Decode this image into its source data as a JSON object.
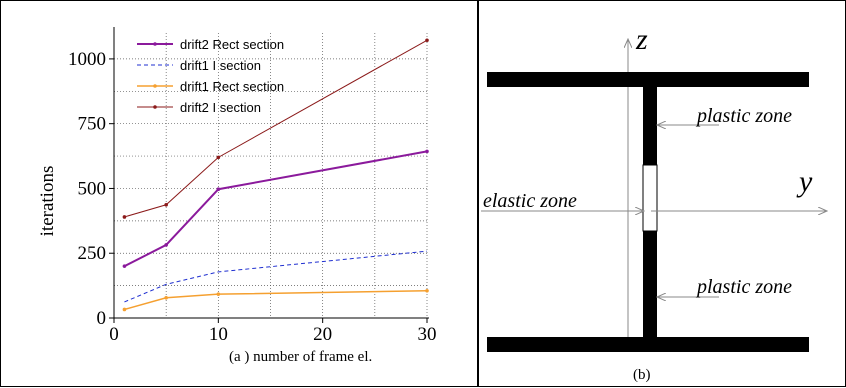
{
  "chart_data": {
    "type": "line",
    "x": [
      1,
      5,
      10,
      30
    ],
    "xticks": [
      0,
      10,
      20,
      30
    ],
    "yticks": [
      0,
      250,
      500,
      750,
      1000
    ],
    "xlim": [
      0,
      30
    ],
    "ylim": [
      0,
      1100
    ],
    "xlabel": "(a )  number of frame el.",
    "ylabel": "iterations",
    "grid": true,
    "legend_position": "top-left",
    "series": [
      {
        "name": "drift2 Rect section",
        "values": [
          200,
          282,
          497,
          643
        ],
        "color": "#8b1a9c",
        "dash": "solid",
        "width": 2
      },
      {
        "name": "drift1 I section",
        "values": [
          62,
          130,
          178,
          258
        ],
        "color": "#1f2fd0",
        "dash": "dashed",
        "width": 1
      },
      {
        "name": "drift1 Rect section",
        "values": [
          33,
          78,
          92,
          105
        ],
        "color": "#f5a030",
        "dash": "solid",
        "width": 1.5
      },
      {
        "name": "drift2 I section",
        "values": [
          390,
          437,
          620,
          1072
        ],
        "color": "#8b1a1a",
        "dash": "solid",
        "width": 1
      }
    ]
  },
  "diagram": {
    "z_label": "z",
    "y_label": "y",
    "labels": {
      "plastic_top": "plastic zone",
      "elastic": "elastic zone",
      "plastic_bottom": "plastic zone"
    },
    "caption": "(b)"
  }
}
